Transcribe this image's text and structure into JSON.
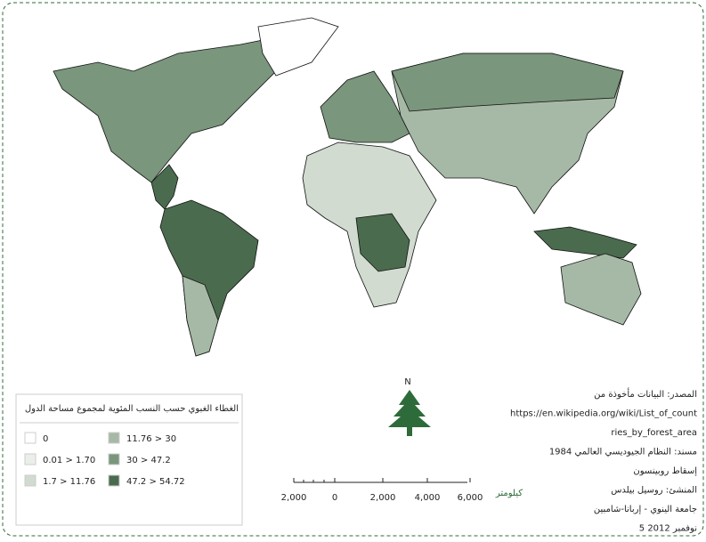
{
  "legend": {
    "title": "الغطاء الغبوي حسب النسب المئوية لمجموع مساحة الدول",
    "items": [
      {
        "label": "0",
        "color": "#ffffff"
      },
      {
        "label": "0.01 > 1.70",
        "color": "#ebefea"
      },
      {
        "label": "1.7 > 11.76",
        "color": "#d1dbd0"
      },
      {
        "label": "11.76 > 30",
        "color": "#a6b9a6"
      },
      {
        "label": "30 > 47.2",
        "color": "#7a967c"
      },
      {
        "label": "47.2 > 54.72",
        "color": "#4a6b4e"
      }
    ]
  },
  "north": "N",
  "scale": {
    "labels": [
      "2,000",
      "0",
      "2,000",
      "4,000",
      "6,000"
    ],
    "unit": "كيلومتر"
  },
  "credits": [
    "المصدر: البيانات مأخوذة من",
    "https://en.wikipedia.org/wiki/List_of_count",
    "ries_by_forest_area",
    "مسند: النظام الجيوديسي العالمي 1984",
    "إسقاط روبينسون",
    "المنشئ: روسيل بيلدس",
    "جامعة الينوي - إربانا-شامبين",
    "5 نوفمبر 2012"
  ]
}
